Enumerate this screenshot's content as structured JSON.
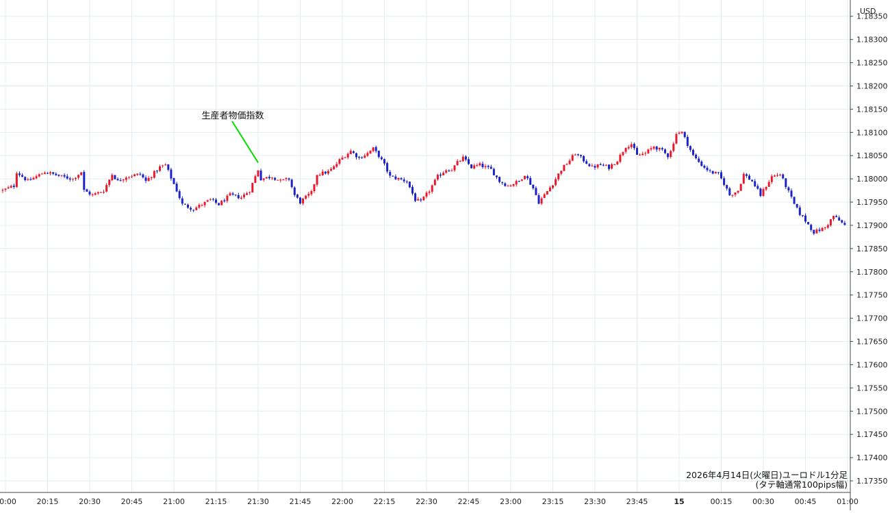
{
  "chart_data": {
    "type": "candlestick",
    "currency_label": "USD",
    "caption_line1": "2026年4月14日(火曜日)ユーロドル1分足",
    "caption_line2": "(タテ軸通常100pips幅)",
    "annotation": {
      "text": "生産者物価指数",
      "time": "21:30",
      "line_color": "#00dd00"
    },
    "ylim": [
      1.17325,
      1.18385
    ],
    "y_ticks": [
      "1.18350",
      "1.18300",
      "1.18250",
      "1.18200",
      "1.18150",
      "1.18100",
      "1.18050",
      "1.18000",
      "1.17950",
      "1.17900",
      "1.17850",
      "1.17800",
      "1.17750",
      "1.17700",
      "1.17650",
      "1.17600",
      "1.17550",
      "1.17500",
      "1.17450",
      "1.17400",
      "1.17350"
    ],
    "x_ticks": [
      "20:00",
      "20:15",
      "20:30",
      "20:45",
      "21:00",
      "21:15",
      "21:30",
      "21:45",
      "22:00",
      "22:15",
      "22:30",
      "22:45",
      "23:00",
      "23:15",
      "23:30",
      "23:45",
      "15",
      "00:15",
      "00:30",
      "00:45",
      "01:00"
    ],
    "x_start": "20:00",
    "x_end": "01:02",
    "up_color": "#e8192c",
    "down_color": "#1a22c8",
    "grid": true,
    "price_path": [
      {
        "t": "19:59",
        "p": 1.17975
      },
      {
        "t": "20:03",
        "p": 1.17985
      },
      {
        "t": "20:04",
        "p": 1.18015
      },
      {
        "t": "20:08",
        "p": 1.17995
      },
      {
        "t": "20:14",
        "p": 1.18015
      },
      {
        "t": "20:20",
        "p": 1.18005
      },
      {
        "t": "20:24",
        "p": 1.18
      },
      {
        "t": "20:27",
        "p": 1.18015
      },
      {
        "t": "20:28",
        "p": 1.17975
      },
      {
        "t": "20:31",
        "p": 1.17965
      },
      {
        "t": "20:35",
        "p": 1.17975
      },
      {
        "t": "20:38",
        "p": 1.1801
      },
      {
        "t": "20:40",
        "p": 1.17995
      },
      {
        "t": "20:43",
        "p": 1.18005
      },
      {
        "t": "20:48",
        "p": 1.1801
      },
      {
        "t": "20:50",
        "p": 1.17995
      },
      {
        "t": "20:55",
        "p": 1.18025
      },
      {
        "t": "20:57",
        "p": 1.1803
      },
      {
        "t": "21:01",
        "p": 1.17975
      },
      {
        "t": "21:03",
        "p": 1.17945
      },
      {
        "t": "21:07",
        "p": 1.17935
      },
      {
        "t": "21:13",
        "p": 1.17955
      },
      {
        "t": "21:16",
        "p": 1.17945
      },
      {
        "t": "21:20",
        "p": 1.17965
      },
      {
        "t": "21:24",
        "p": 1.1796
      },
      {
        "t": "21:27",
        "p": 1.17975
      },
      {
        "t": "21:29",
        "p": 1.18005
      },
      {
        "t": "21:30",
        "p": 1.1802
      },
      {
        "t": "21:31",
        "p": 1.18
      },
      {
        "t": "21:35",
        "p": 1.18005
      },
      {
        "t": "21:38",
        "p": 1.17995
      },
      {
        "t": "21:41",
        "p": 1.18
      },
      {
        "t": "21:43",
        "p": 1.17965
      },
      {
        "t": "21:45",
        "p": 1.1795
      },
      {
        "t": "21:49",
        "p": 1.1797
      },
      {
        "t": "21:51",
        "p": 1.1801
      },
      {
        "t": "21:55",
        "p": 1.18015
      },
      {
        "t": "21:57",
        "p": 1.18025
      },
      {
        "t": "21:59",
        "p": 1.1804
      },
      {
        "t": "22:03",
        "p": 1.1806
      },
      {
        "t": "22:06",
        "p": 1.18045
      },
      {
        "t": "22:09",
        "p": 1.18055
      },
      {
        "t": "22:11",
        "p": 1.18065
      },
      {
        "t": "22:13",
        "p": 1.1805
      },
      {
        "t": "22:15",
        "p": 1.1803
      },
      {
        "t": "22:17",
        "p": 1.18005
      },
      {
        "t": "22:20",
        "p": 1.18
      },
      {
        "t": "22:23",
        "p": 1.17995
      },
      {
        "t": "22:26",
        "p": 1.17955
      },
      {
        "t": "22:28",
        "p": 1.1795
      },
      {
        "t": "22:31",
        "p": 1.17975
      },
      {
        "t": "22:34",
        "p": 1.18005
      },
      {
        "t": "22:37",
        "p": 1.1802
      },
      {
        "t": "22:39",
        "p": 1.1802
      },
      {
        "t": "22:41",
        "p": 1.18035
      },
      {
        "t": "22:43",
        "p": 1.18045
      },
      {
        "t": "22:46",
        "p": 1.18025
      },
      {
        "t": "22:49",
        "p": 1.1803
      },
      {
        "t": "22:53",
        "p": 1.1802
      },
      {
        "t": "22:56",
        "p": 1.17995
      },
      {
        "t": "22:59",
        "p": 1.17985
      },
      {
        "t": "23:03",
        "p": 1.17995
      },
      {
        "t": "23:05",
        "p": 1.1801
      },
      {
        "t": "23:08",
        "p": 1.1798
      },
      {
        "t": "23:10",
        "p": 1.1795
      },
      {
        "t": "23:12",
        "p": 1.17965
      },
      {
        "t": "23:15",
        "p": 1.1799
      },
      {
        "t": "23:18",
        "p": 1.1802
      },
      {
        "t": "23:21",
        "p": 1.1804
      },
      {
        "t": "23:23",
        "p": 1.18055
      },
      {
        "t": "23:26",
        "p": 1.1804
      },
      {
        "t": "23:29",
        "p": 1.18025
      },
      {
        "t": "23:32",
        "p": 1.1803
      },
      {
        "t": "23:35",
        "p": 1.18025
      },
      {
        "t": "23:38",
        "p": 1.1804
      },
      {
        "t": "23:41",
        "p": 1.1807
      },
      {
        "t": "23:43",
        "p": 1.18075
      },
      {
        "t": "23:45",
        "p": 1.1805
      },
      {
        "t": "23:48",
        "p": 1.18055
      },
      {
        "t": "23:51",
        "p": 1.1807
      },
      {
        "t": "23:54",
        "p": 1.1806
      },
      {
        "t": "23:56",
        "p": 1.1805
      },
      {
        "t": "23:58",
        "p": 1.18075
      },
      {
        "t": "23:59",
        "p": 1.181
      },
      {
        "t": "00:01",
        "p": 1.181
      },
      {
        "t": "00:03",
        "p": 1.18075
      },
      {
        "t": "00:05",
        "p": 1.1805
      },
      {
        "t": "00:08",
        "p": 1.1803
      },
      {
        "t": "00:11",
        "p": 1.18015
      },
      {
        "t": "00:14",
        "p": 1.1801
      },
      {
        "t": "00:16",
        "p": 1.1799
      },
      {
        "t": "00:18",
        "p": 1.17965
      },
      {
        "t": "00:21",
        "p": 1.17975
      },
      {
        "t": "00:23",
        "p": 1.1801
      },
      {
        "t": "00:26",
        "p": 1.17995
      },
      {
        "t": "00:29",
        "p": 1.17965
      },
      {
        "t": "00:31",
        "p": 1.17985
      },
      {
        "t": "00:33",
        "p": 1.18005
      },
      {
        "t": "00:36",
        "p": 1.1801
      },
      {
        "t": "00:38",
        "p": 1.17985
      },
      {
        "t": "00:41",
        "p": 1.17945
      },
      {
        "t": "00:43",
        "p": 1.17925
      },
      {
        "t": "00:45",
        "p": 1.1791
      },
      {
        "t": "00:48",
        "p": 1.17885
      },
      {
        "t": "00:50",
        "p": 1.1789
      },
      {
        "t": "00:52",
        "p": 1.17895
      },
      {
        "t": "00:55",
        "p": 1.1792
      },
      {
        "t": "00:58",
        "p": 1.17905
      },
      {
        "t": "00:59",
        "p": 1.179
      }
    ]
  }
}
